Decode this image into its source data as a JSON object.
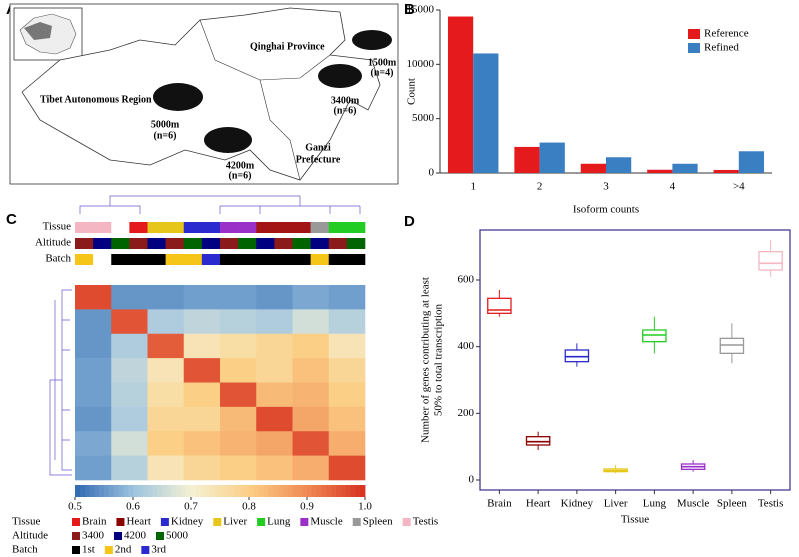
{
  "panel_labels": [
    "A",
    "B",
    "C",
    "D"
  ],
  "map": {
    "regions": [
      "Qinghai Province",
      "Tibet Autonomous Region",
      "Ganzi",
      "Prefecture"
    ],
    "sites": [
      [
        "5000m",
        "(n=6)"
      ],
      [
        "4200m",
        "(n=6)"
      ],
      [
        "3400m",
        "(n=6)"
      ],
      [
        "1500m",
        "(n=4)"
      ]
    ]
  },
  "chart_data": [
    {
      "type": "bar",
      "xlabel": "Isoform counts",
      "ylabel": "Count",
      "categories": [
        "1",
        "2",
        "3",
        "4",
        ">4"
      ],
      "series": [
        {
          "name": "Reference",
          "color": "#e41a1c",
          "values": [
            14400,
            2400,
            850,
            300,
            280
          ]
        },
        {
          "name": "Refined",
          "color": "#3a7fc1",
          "values": [
            11000,
            2800,
            1450,
            850,
            2000
          ]
        }
      ],
      "ylim": [
        0,
        15000
      ],
      "yticks": [
        0,
        5000,
        10000,
        15000
      ],
      "legend": "top-right"
    },
    {
      "type": "box",
      "xlabel": "Tissue",
      "ylabel": [
        "Number of genes contributing at least",
        "50% to total transcription"
      ],
      "categories": [
        "Brain",
        "Heart",
        "Kidney",
        "Liver",
        "Lung",
        "Muscle",
        "Spleen",
        "Testis"
      ],
      "colors": [
        "#e41a1c",
        "#8b0000",
        "#2a2acf",
        "#e6c619",
        "#22cc22",
        "#9b30c8",
        "#999999",
        "#f4b6c2"
      ],
      "boxes": [
        {
          "low": 490,
          "q1": 500,
          "median": 510,
          "q3": 545,
          "high": 570
        },
        {
          "low": 90,
          "q1": 105,
          "median": 115,
          "q3": 130,
          "high": 145
        },
        {
          "low": 340,
          "q1": 355,
          "median": 370,
          "q3": 390,
          "high": 410
        },
        {
          "low": 20,
          "q1": 25,
          "median": 28,
          "q3": 33,
          "high": 45
        },
        {
          "low": 380,
          "q1": 415,
          "median": 435,
          "q3": 450,
          "high": 490
        },
        {
          "low": 25,
          "q1": 32,
          "median": 40,
          "q3": 48,
          "high": 60
        },
        {
          "low": 350,
          "q1": 380,
          "median": 405,
          "q3": 425,
          "high": 470
        },
        {
          "low": 610,
          "q1": 630,
          "median": 650,
          "q3": 685,
          "high": 720
        }
      ],
      "ylim": [
        -30,
        750
      ],
      "yticks": [
        0,
        200,
        400,
        600
      ]
    },
    {
      "type": "heatmap",
      "zlim": [
        0.5,
        1
      ],
      "colorscale": [
        "#2f67b1",
        "#9cc3df",
        "#f4f1d4",
        "#fbcf86",
        "#f08a55",
        "#d7301f"
      ],
      "colorbar_ticks": [
        0.5,
        0.6,
        0.7,
        0.8,
        0.9,
        {
          "value": 1,
          "label": "1.0"
        }
      ],
      "z": [
        [
          0.97,
          0.55,
          0.55,
          0.56,
          0.56,
          0.55,
          0.57,
          0.56
        ],
        [
          0.55,
          0.96,
          0.62,
          0.64,
          0.63,
          0.62,
          0.66,
          0.63
        ],
        [
          0.55,
          0.62,
          0.95,
          0.74,
          0.76,
          0.78,
          0.8,
          0.74
        ],
        [
          0.56,
          0.64,
          0.74,
          0.96,
          0.8,
          0.78,
          0.82,
          0.78
        ],
        [
          0.56,
          0.63,
          0.76,
          0.8,
          0.96,
          0.83,
          0.84,
          0.8
        ],
        [
          0.55,
          0.62,
          0.78,
          0.78,
          0.83,
          0.97,
          0.86,
          0.82
        ],
        [
          0.57,
          0.66,
          0.8,
          0.82,
          0.84,
          0.86,
          0.96,
          0.85
        ],
        [
          0.56,
          0.63,
          0.74,
          0.78,
          0.8,
          0.82,
          0.85,
          0.97
        ]
      ],
      "tracks": [
        {
          "name": "Tissue",
          "colors": [
            "#f4b6c2",
            "#f4b6c2",
            "#ffffff",
            "#e41a1c",
            "#e6c619",
            "#e6c619",
            "#2a2acf",
            "#2a2acf",
            "#9b30c8",
            "#9b30c8",
            "#a31515",
            "#a31515",
            "#a31515",
            "#999999",
            "#22cc22",
            "#22cc22"
          ]
        },
        {
          "name": "Altitude",
          "colors": [
            "#8b1a1a",
            "#000080",
            "#006400",
            "#8b1a1a",
            "#000080",
            "#8b1a1a",
            "#006400",
            "#000080",
            "#8b1a1a",
            "#006400",
            "#000080",
            "#8b1a1a",
            "#006400",
            "#000080",
            "#8b1a1a",
            "#006400"
          ]
        },
        {
          "name": "Batch",
          "colors": [
            "#f5c518",
            "#ffffff",
            "#000000",
            "#000000",
            "#000000",
            "#f5c518",
            "#f5c518",
            "#2a2acf",
            "#000000",
            "#000000",
            "#000000",
            "#000000",
            "#000000",
            "#f5c518",
            "#000000",
            "#000000"
          ]
        }
      ],
      "legends": [
        {
          "title": "Tissue",
          "items": [
            {
              "name": "Brain",
              "color": "#e41a1c"
            },
            {
              "name": "Heart",
              "color": "#8b0000"
            },
            {
              "name": "Kidney",
              "color": "#2a2acf"
            },
            {
              "name": "Liver",
              "color": "#e6c619"
            },
            {
              "name": "Lung",
              "color": "#22cc22"
            },
            {
              "name": "Muscle",
              "color": "#9b30c8"
            },
            {
              "name": "Spleen",
              "color": "#999999"
            },
            {
              "name": "Testis",
              "color": "#f4b6c2"
            }
          ]
        },
        {
          "title": "Altitude",
          "items": [
            {
              "name": "3400",
              "color": "#8b1a1a"
            },
            {
              "name": "4200",
              "color": "#000080"
            },
            {
              "name": "5000",
              "color": "#006400"
            }
          ]
        },
        {
          "title": "Batch",
          "items": [
            {
              "name": "1st",
              "color": "#000000"
            },
            {
              "name": "2nd",
              "color": "#f5c518"
            },
            {
              "name": "3rd",
              "color": "#2a2acf"
            }
          ]
        }
      ]
    }
  ]
}
